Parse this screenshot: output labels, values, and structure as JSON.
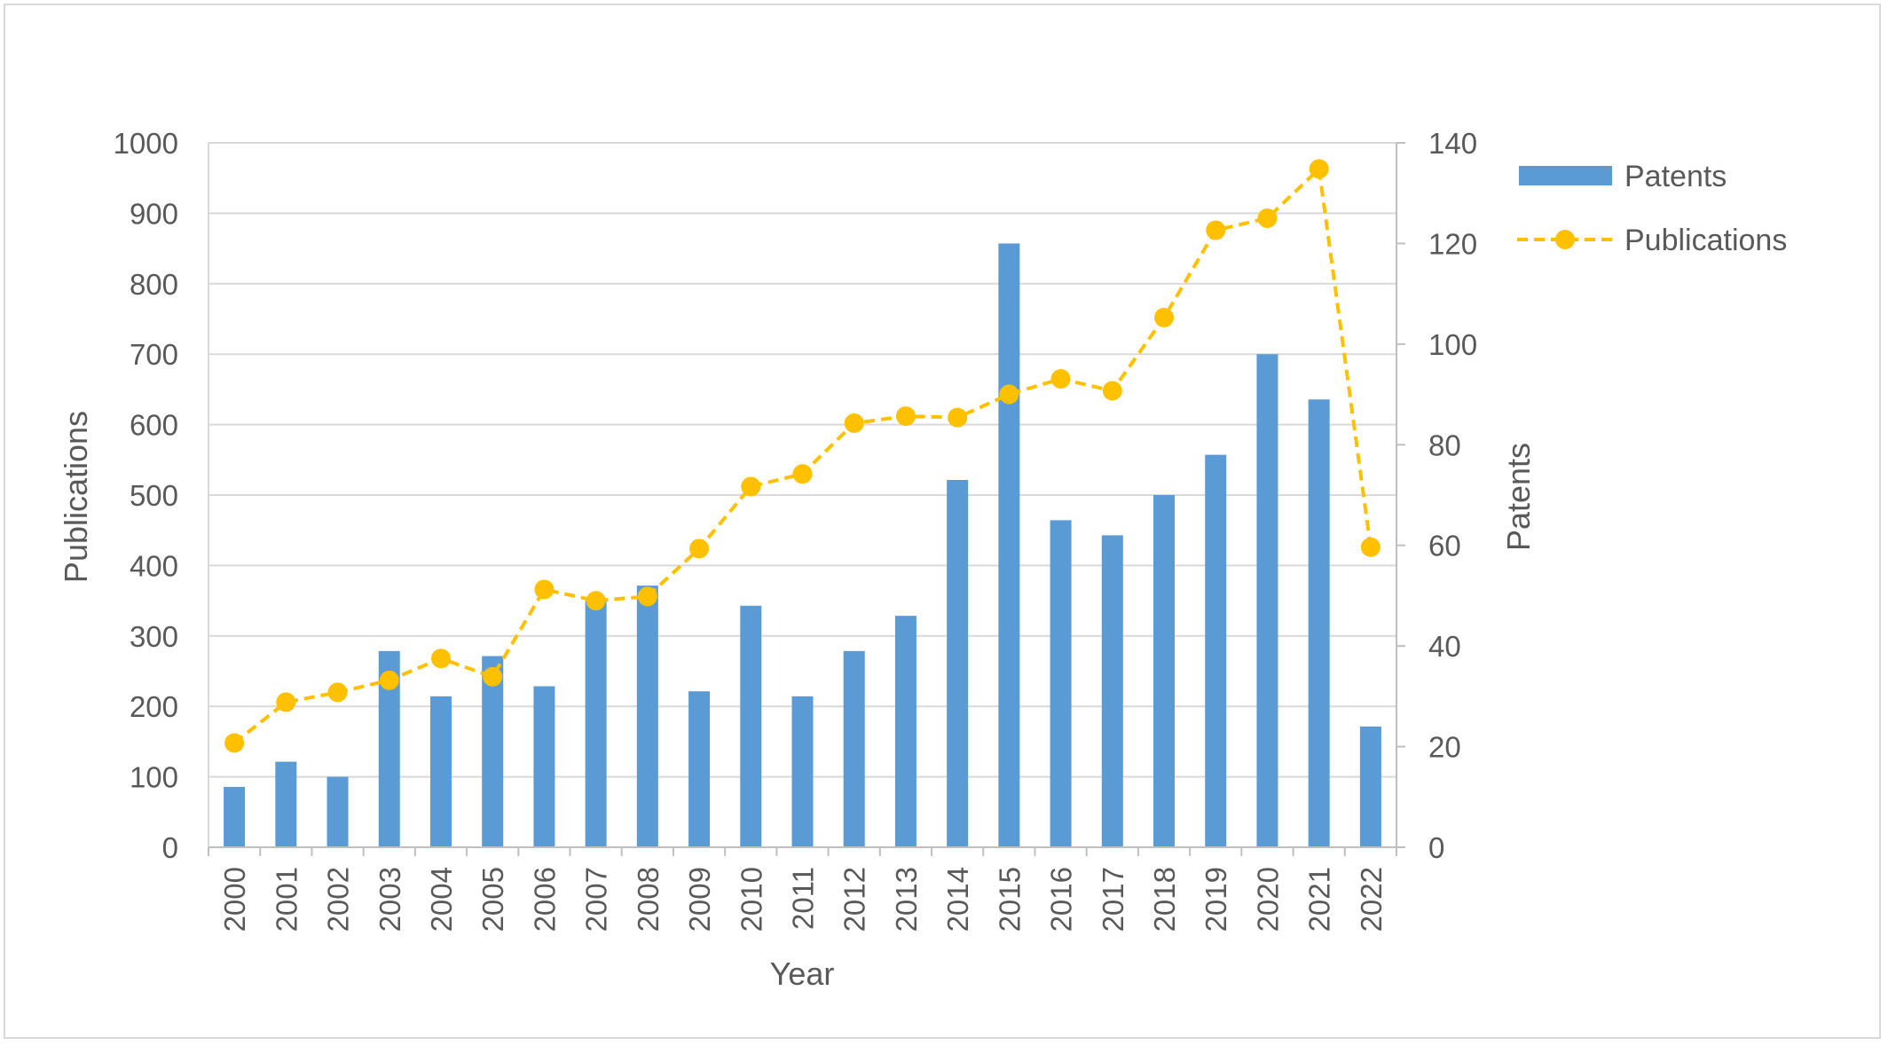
{
  "chart_data": {
    "type": "bar",
    "categories": [
      "2000",
      "2001",
      "2002",
      "2003",
      "2004",
      "2005",
      "2006",
      "2007",
      "2008",
      "2009",
      "2010",
      "2011",
      "2012",
      "2013",
      "2014",
      "2015",
      "2016",
      "2017",
      "2018",
      "2019",
      "2020",
      "2021",
      "2022"
    ],
    "series": [
      {
        "name": "Patents",
        "type": "bar",
        "axis": "right",
        "color": "#5b9bd5",
        "values": [
          12,
          17,
          14,
          39,
          30,
          38,
          32,
          49,
          52,
          31,
          48,
          30,
          39,
          46,
          73,
          120,
          65,
          62,
          70,
          78,
          98,
          89,
          24
        ]
      },
      {
        "name": "Publications",
        "type": "line",
        "axis": "left",
        "style": "dashed, circle markers",
        "color": "#ffc000",
        "values": [
          148,
          206,
          220,
          237,
          268,
          242,
          366,
          350,
          356,
          424,
          512,
          530,
          602,
          612,
          610,
          643,
          665,
          648,
          752,
          876,
          893,
          963,
          426
        ]
      }
    ],
    "xlabel": "Year",
    "ylabel": "Publications",
    "y2label": "Patents",
    "ylim": [
      0,
      1000
    ],
    "y2lim": [
      0,
      140
    ],
    "yticks": [
      "0",
      "100",
      "200",
      "300",
      "400",
      "500",
      "600",
      "700",
      "800",
      "900",
      "1000"
    ],
    "y2ticks": [
      "0",
      "20",
      "40",
      "60",
      "80",
      "100",
      "120",
      "140"
    ],
    "grid": true,
    "legend": "right"
  }
}
